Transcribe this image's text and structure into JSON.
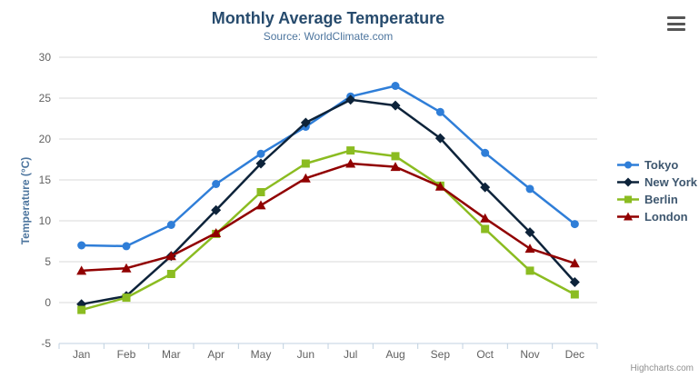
{
  "chart_data": {
    "type": "line",
    "title": "Monthly Average Temperature",
    "subtitle": "Source: WorldClimate.com",
    "xlabel": "",
    "ylabel": "Temperature (°C)",
    "categories": [
      "Jan",
      "Feb",
      "Mar",
      "Apr",
      "May",
      "Jun",
      "Jul",
      "Aug",
      "Sep",
      "Oct",
      "Nov",
      "Dec"
    ],
    "series": [
      {
        "name": "Tokyo",
        "color": "#2f7ed8",
        "marker": "circle",
        "values": [
          7.0,
          6.9,
          9.5,
          14.5,
          18.2,
          21.5,
          25.2,
          26.5,
          23.3,
          18.3,
          13.9,
          9.6
        ]
      },
      {
        "name": "New York",
        "color": "#0d233a",
        "marker": "diamond",
        "values": [
          -0.2,
          0.8,
          5.7,
          11.3,
          17.0,
          22.0,
          24.8,
          24.1,
          20.1,
          14.1,
          8.6,
          2.5
        ]
      },
      {
        "name": "Berlin",
        "color": "#8bbc21",
        "marker": "square",
        "values": [
          -0.9,
          0.6,
          3.5,
          8.4,
          13.5,
          17.0,
          18.6,
          17.9,
          14.3,
          9.0,
          3.9,
          1.0
        ]
      },
      {
        "name": "London",
        "color": "#910000",
        "marker": "triangle",
        "values": [
          3.9,
          4.2,
          5.7,
          8.5,
          11.9,
          15.2,
          17.0,
          16.6,
          14.2,
          10.3,
          6.6,
          4.8
        ]
      }
    ],
    "ylim": [
      -5,
      30
    ],
    "ytick_step": 5,
    "grid": true,
    "legend_position": "right"
  },
  "colors": {
    "title": "#274b6d",
    "subtitle": "#4d759e",
    "y_title": "#4d759e",
    "axis_label": "#606060",
    "grid_line": "#d8d8d8",
    "axis_line": "#c0d0e0",
    "legend_text": "#3e576f",
    "hamburger": "#555555"
  },
  "credits": {
    "label": "Highcharts.com"
  }
}
